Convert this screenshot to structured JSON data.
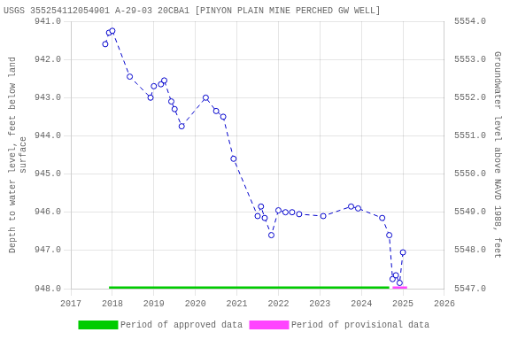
{
  "chart_data": {
    "type": "line",
    "title": "USGS 355254112054901 A-29-03 20CBA1 [PINYON PLAIN MINE PERCHED GW WELL]",
    "y_label": "Depth to water level, feet below land\nsurface",
    "y2_label": "Groundwater level above NAVD 1988, feet",
    "x": [
      2017.83,
      2017.92,
      2018.0,
      2018.42,
      2018.92,
      2019.0,
      2019.17,
      2019.25,
      2019.42,
      2019.5,
      2019.67,
      2020.25,
      2020.5,
      2020.67,
      2020.92,
      2021.5,
      2021.58,
      2021.67,
      2021.83,
      2022.0,
      2022.17,
      2022.33,
      2022.5,
      2023.08,
      2023.75,
      2023.92,
      2024.5,
      2024.67,
      2024.75,
      2024.83,
      2024.92,
      2025.0
    ],
    "series": [
      {
        "color": "#0000CC",
        "marker": "circle",
        "line_style": "dashed",
        "values": [
          941.6,
          941.3,
          941.25,
          942.45,
          943.0,
          942.7,
          942.65,
          942.55,
          943.1,
          943.3,
          943.75,
          943.0,
          943.35,
          943.5,
          944.6,
          946.1,
          945.85,
          946.15,
          946.6,
          945.95,
          946.0,
          946.0,
          946.05,
          946.1,
          945.85,
          945.9,
          946.15,
          946.6,
          947.75,
          947.65,
          947.85,
          947.05
        ]
      },
      {
        "name": "Period of approved data",
        "type": "span",
        "color": "#00cc00",
        "x": [
          2017.92,
          2024.67
        ],
        "values": [
          948.0,
          948.0
        ]
      },
      {
        "name": "Period of provisional data",
        "type": "span",
        "color": "#ff44ff",
        "x": [
          2024.75,
          2025.1
        ],
        "values": [
          948.0,
          948.0
        ]
      }
    ],
    "xlim": [
      2017,
      2026
    ],
    "xticks": [
      2017,
      2018,
      2019,
      2020,
      2021,
      2022,
      2023,
      2024,
      2025,
      2026
    ],
    "ylim": [
      948.0,
      941.0
    ],
    "yticks": [
      {
        "value": 941.0,
        "label": "941.0"
      },
      {
        "value": 942.0,
        "label": "942.0"
      },
      {
        "value": 943.0,
        "label": "943.0"
      },
      {
        "value": 944.0,
        "label": "944.0"
      },
      {
        "value": 945.0,
        "label": "945.0"
      },
      {
        "value": 946.0,
        "label": "946.0"
      },
      {
        "value": 947.0,
        "label": "947.0"
      },
      {
        "value": 948.0,
        "label": "948.0"
      }
    ],
    "y2lim": [
      5547.0,
      5554.0
    ],
    "y2ticks": [
      {
        "value": 5547.0,
        "label": "5547.0"
      },
      {
        "value": 5548.0,
        "label": "5548.0"
      },
      {
        "value": 5549.0,
        "label": "5549.0"
      },
      {
        "value": 5550.0,
        "label": "5550.0"
      },
      {
        "value": 5551.0,
        "label": "5551.0"
      },
      {
        "value": 5552.0,
        "label": "5552.0"
      },
      {
        "value": 5553.0,
        "label": "5553.0"
      },
      {
        "value": 5554.0,
        "label": "5554.0"
      }
    ],
    "grid": true,
    "legend": "bottom"
  }
}
